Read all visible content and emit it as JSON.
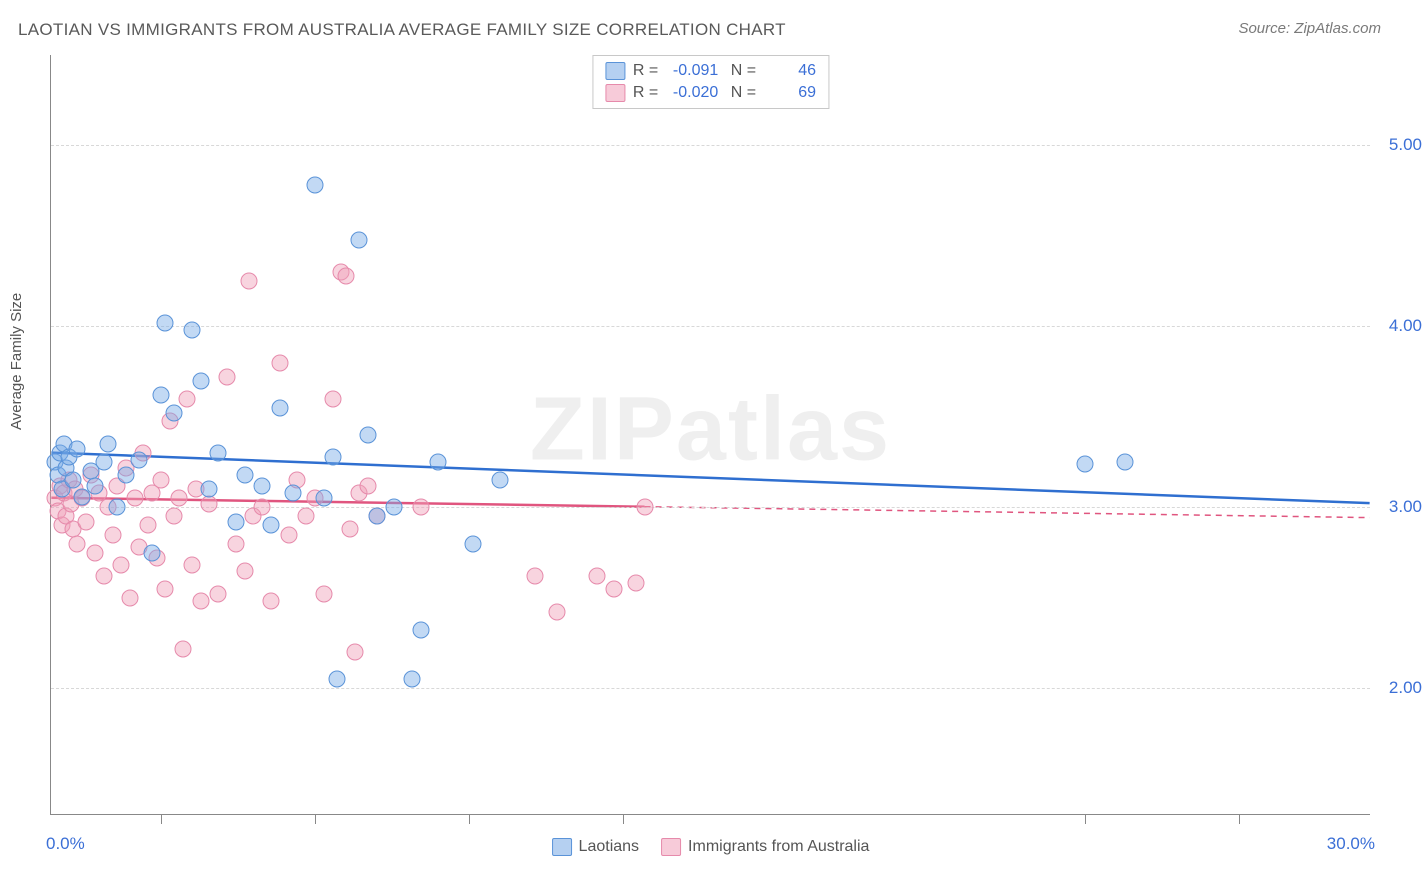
{
  "title": "LAOTIAN VS IMMIGRANTS FROM AUSTRALIA AVERAGE FAMILY SIZE CORRELATION CHART",
  "source": "Source: ZipAtlas.com",
  "watermark": "ZIPatlas",
  "chart": {
    "type": "scatter",
    "ylabel": "Average Family Size",
    "xlim": [
      0,
      30
    ],
    "ylim": [
      1.3,
      5.5
    ],
    "ytick_values": [
      2.0,
      3.0,
      4.0,
      5.0
    ],
    "ytick_labels": [
      "2.00",
      "3.00",
      "4.00",
      "5.00"
    ],
    "xtick_positions": [
      2.5,
      6.0,
      9.5,
      13.0,
      23.5,
      27.0
    ],
    "xaxis_label_left": "0.0%",
    "xaxis_label_right": "30.0%",
    "grid_color": "#d8d8d8",
    "axis_color": "#888888",
    "background_color": "#ffffff",
    "tick_label_color": "#3b6fd6",
    "series": {
      "blue": {
        "label": "Laotians",
        "fill_color": "rgba(120,170,230,0.45)",
        "stroke_color": "#5a93d8",
        "trend_color": "#2f6fd0",
        "trend_width": 2.5,
        "R": "-0.091",
        "N": "46",
        "trend": {
          "x1": 0,
          "y1": 3.3,
          "x2": 30,
          "y2": 3.02,
          "solid_until_x": 30
        },
        "points": [
          [
            0.1,
            3.25
          ],
          [
            0.15,
            3.18
          ],
          [
            0.2,
            3.3
          ],
          [
            0.25,
            3.1
          ],
          [
            0.3,
            3.35
          ],
          [
            0.35,
            3.22
          ],
          [
            0.4,
            3.28
          ],
          [
            0.5,
            3.15
          ],
          [
            0.6,
            3.32
          ],
          [
            0.7,
            3.06
          ],
          [
            0.9,
            3.2
          ],
          [
            1.0,
            3.12
          ],
          [
            1.2,
            3.25
          ],
          [
            1.3,
            3.35
          ],
          [
            1.5,
            3.0
          ],
          [
            1.7,
            3.18
          ],
          [
            2.0,
            3.26
          ],
          [
            2.3,
            2.75
          ],
          [
            2.5,
            3.62
          ],
          [
            2.6,
            4.02
          ],
          [
            2.8,
            3.52
          ],
          [
            3.2,
            3.98
          ],
          [
            3.4,
            3.7
          ],
          [
            3.6,
            3.1
          ],
          [
            3.8,
            3.3
          ],
          [
            4.2,
            2.92
          ],
          [
            4.4,
            3.18
          ],
          [
            4.8,
            3.12
          ],
          [
            5.0,
            2.9
          ],
          [
            5.2,
            3.55
          ],
          [
            5.5,
            3.08
          ],
          [
            6.0,
            4.78
          ],
          [
            6.2,
            3.05
          ],
          [
            6.4,
            3.28
          ],
          [
            6.5,
            2.05
          ],
          [
            7.0,
            4.48
          ],
          [
            7.2,
            3.4
          ],
          [
            7.4,
            2.95
          ],
          [
            7.8,
            3.0
          ],
          [
            8.2,
            2.05
          ],
          [
            8.4,
            2.32
          ],
          [
            8.8,
            3.25
          ],
          [
            9.6,
            2.8
          ],
          [
            10.2,
            3.15
          ],
          [
            23.5,
            3.24
          ],
          [
            24.4,
            3.25
          ]
        ]
      },
      "pink": {
        "label": "Immigrants from Australia",
        "fill_color": "rgba(240,160,185,0.45)",
        "stroke_color": "#e68aab",
        "trend_color": "#e0557f",
        "trend_width": 2.5,
        "R": "-0.020",
        "N": "69",
        "trend": {
          "x1": 0,
          "y1": 3.05,
          "x2": 30,
          "y2": 2.94,
          "solid_until_x": 13.5
        },
        "points": [
          [
            0.1,
            3.05
          ],
          [
            0.15,
            2.98
          ],
          [
            0.2,
            3.12
          ],
          [
            0.25,
            2.9
          ],
          [
            0.3,
            3.08
          ],
          [
            0.35,
            2.95
          ],
          [
            0.4,
            3.15
          ],
          [
            0.45,
            3.02
          ],
          [
            0.5,
            2.88
          ],
          [
            0.55,
            3.1
          ],
          [
            0.6,
            2.8
          ],
          [
            0.7,
            3.05
          ],
          [
            0.8,
            2.92
          ],
          [
            0.9,
            3.18
          ],
          [
            1.0,
            2.75
          ],
          [
            1.1,
            3.08
          ],
          [
            1.2,
            2.62
          ],
          [
            1.3,
            3.0
          ],
          [
            1.4,
            2.85
          ],
          [
            1.5,
            3.12
          ],
          [
            1.6,
            2.68
          ],
          [
            1.7,
            3.22
          ],
          [
            1.8,
            2.5
          ],
          [
            1.9,
            3.05
          ],
          [
            2.0,
            2.78
          ],
          [
            2.1,
            3.3
          ],
          [
            2.2,
            2.9
          ],
          [
            2.3,
            3.08
          ],
          [
            2.4,
            2.72
          ],
          [
            2.5,
            3.15
          ],
          [
            2.6,
            2.55
          ],
          [
            2.7,
            3.48
          ],
          [
            2.8,
            2.95
          ],
          [
            2.9,
            3.05
          ],
          [
            3.0,
            2.22
          ],
          [
            3.1,
            3.6
          ],
          [
            3.2,
            2.68
          ],
          [
            3.3,
            3.1
          ],
          [
            3.4,
            2.48
          ],
          [
            3.6,
            3.02
          ],
          [
            3.8,
            2.52
          ],
          [
            4.0,
            3.72
          ],
          [
            4.2,
            2.8
          ],
          [
            4.4,
            2.65
          ],
          [
            4.5,
            4.25
          ],
          [
            4.6,
            2.95
          ],
          [
            4.8,
            3.0
          ],
          [
            5.0,
            2.48
          ],
          [
            5.2,
            3.8
          ],
          [
            5.4,
            2.85
          ],
          [
            5.6,
            3.15
          ],
          [
            5.8,
            2.95
          ],
          [
            6.0,
            3.05
          ],
          [
            6.2,
            2.52
          ],
          [
            6.4,
            3.6
          ],
          [
            6.6,
            4.3
          ],
          [
            6.7,
            4.28
          ],
          [
            6.8,
            2.88
          ],
          [
            6.9,
            2.2
          ],
          [
            7.0,
            3.08
          ],
          [
            7.2,
            3.12
          ],
          [
            7.4,
            2.95
          ],
          [
            8.4,
            3.0
          ],
          [
            11.0,
            2.62
          ],
          [
            11.5,
            2.42
          ],
          [
            12.4,
            2.62
          ],
          [
            12.8,
            2.55
          ],
          [
            13.3,
            2.58
          ],
          [
            13.5,
            3.0
          ]
        ]
      }
    }
  },
  "legend_bottom": [
    {
      "swatch_class": "sw-blue",
      "label": "Laotians"
    },
    {
      "swatch_class": "sw-pink",
      "label": "Immigrants from Australia"
    }
  ]
}
